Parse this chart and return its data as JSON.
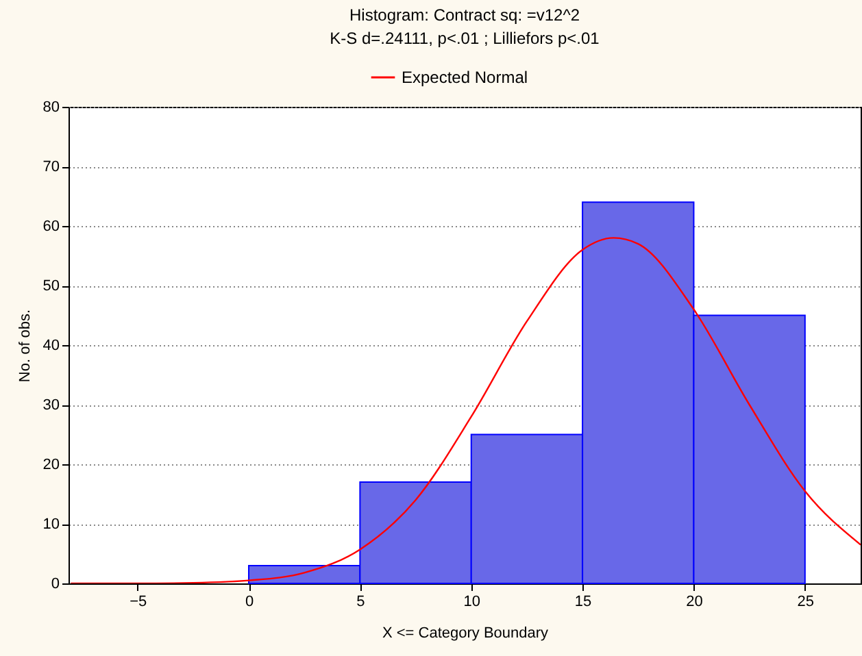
{
  "chart_data": {
    "type": "histogram",
    "title": "Histogram: Contract sq: =v12^2",
    "subtitle": "K-S d=.24111, p<.01 ; Lilliefors p<.01",
    "xlabel": "X <= Category Boundary",
    "ylabel": "No. of obs.",
    "bins": [
      0,
      5,
      10,
      15,
      20,
      25
    ],
    "series": [
      {
        "color": "#6868e8",
        "values": [
          3,
          17,
          25,
          64,
          45
        ]
      },
      {
        "type": "line",
        "name": "Expected Normal",
        "color": "#ff0000",
        "x": [
          -8,
          -5,
          -2.5,
          0,
          2.5,
          5,
          7.5,
          10,
          12.5,
          15,
          16.4,
          17.5,
          20,
          22.5,
          25,
          27.5
        ],
        "values": [
          0,
          0,
          0.1,
          0.5,
          1.8,
          5.7,
          14,
          28,
          44,
          56,
          58,
          57,
          46,
          30,
          15.5,
          6.5
        ]
      }
    ],
    "xlim": [
      -8.1,
      27.5
    ],
    "xticks": [
      -5,
      0,
      5,
      10,
      15,
      20,
      25
    ],
    "ylim": [
      0,
      80
    ],
    "yticks": [
      0,
      10,
      20,
      30,
      40,
      50,
      60,
      70,
      80
    ],
    "grid": "y",
    "legend": "top"
  }
}
